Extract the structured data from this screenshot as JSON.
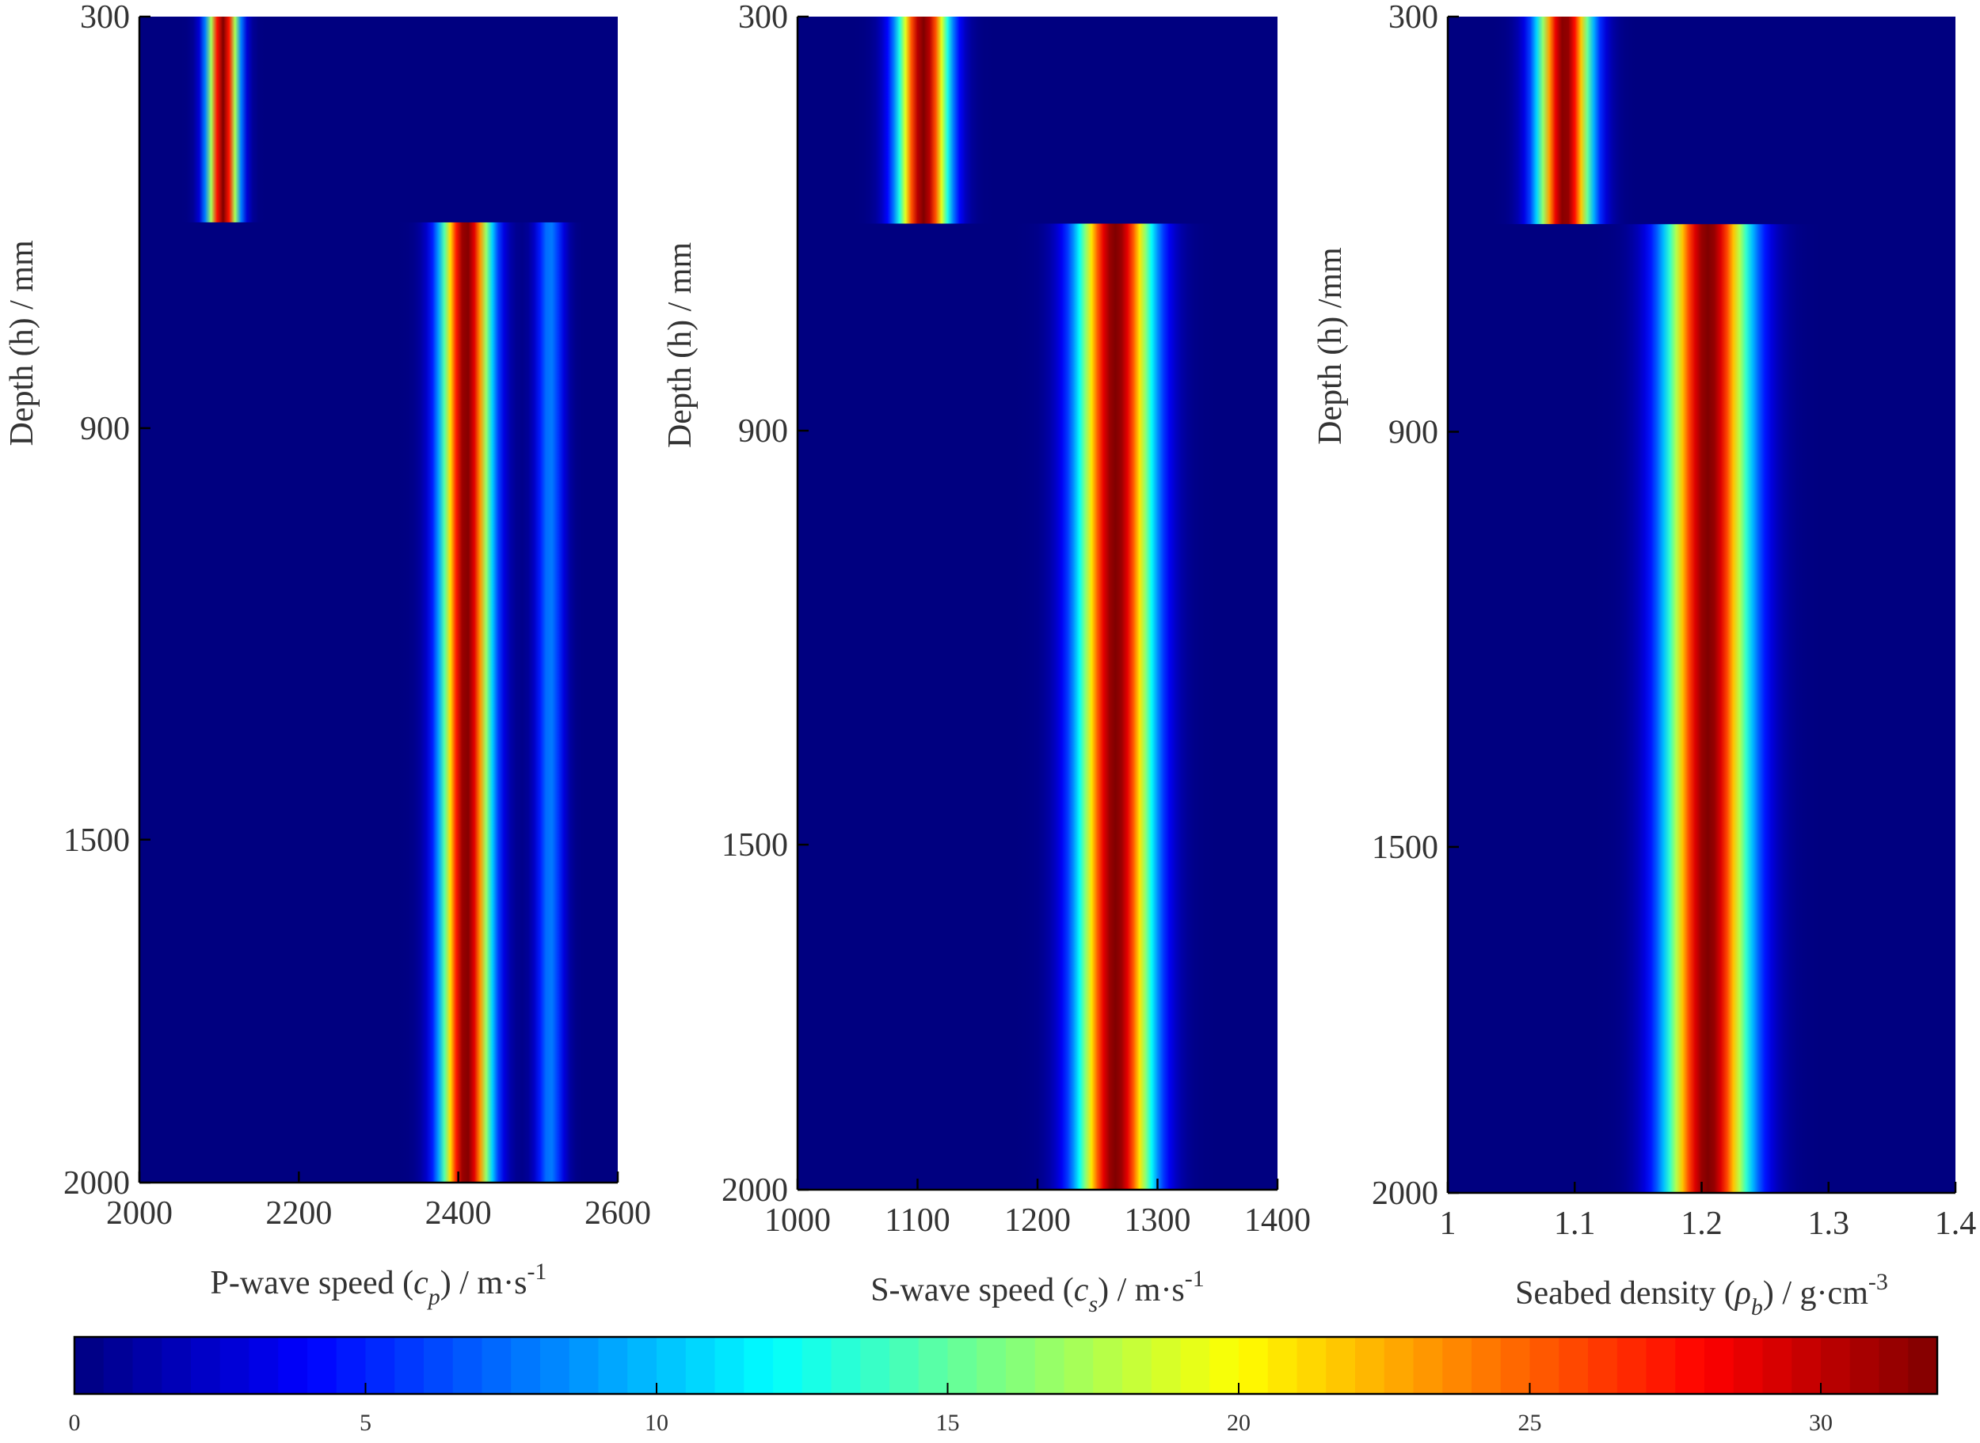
{
  "chart_data": [
    {
      "type": "heatmap",
      "id": "p-wave",
      "xlabel": "P-wave speed (c_p) / m·s^-1",
      "xlabel_parts": {
        "pre": "P-wave speed (",
        "sym": "c",
        "sub": "p",
        "post": ") / m·s",
        "sup": "-1"
      },
      "ylabel": "Depth (h) / mm",
      "xlim": [
        2000,
        2600
      ],
      "ylim": [
        300,
        2000
      ],
      "x_ticks": [
        2000,
        2200,
        2400,
        2600
      ],
      "y_ticks": [
        300,
        900,
        1500,
        2000
      ],
      "layers": [
        {
          "depth_range": [
            300,
            600
          ],
          "center": 2105,
          "width": 40
        },
        {
          "depth_range": [
            600,
            2000
          ],
          "center": 2410,
          "width": 65,
          "secondary": {
            "center": 2515,
            "width": 35,
            "peak": 8
          }
        }
      ]
    },
    {
      "type": "heatmap",
      "id": "s-wave",
      "xlabel": "S-wave speed (c_s) / m·s^-1",
      "xlabel_parts": {
        "pre": "S-wave speed (",
        "sym": "c",
        "sub": "s",
        "post": ") / m·s",
        "sup": "-1"
      },
      "ylabel": "Depth (h) / mm",
      "xlim": [
        1000,
        1400
      ],
      "ylim": [
        300,
        2000
      ],
      "x_ticks": [
        1000,
        1100,
        1200,
        1300,
        1400
      ],
      "y_ticks": [
        300,
        900,
        1500,
        2000
      ],
      "layers": [
        {
          "depth_range": [
            300,
            600
          ],
          "center": 1105,
          "width": 44
        },
        {
          "depth_range": [
            600,
            2000
          ],
          "center": 1265,
          "width": 64
        }
      ]
    },
    {
      "type": "heatmap",
      "id": "density",
      "xlabel": "Seabed density (ρ_b) / g·cm^-3",
      "xlabel_parts": {
        "pre": "Seabed  density (",
        "sym": "ρ",
        "sub": "b",
        "post": ") / g·cm",
        "sup": "-3"
      },
      "ylabel": "Depth (h) /mm",
      "xlim": [
        1.0,
        1.4
      ],
      "ylim": [
        300,
        2000
      ],
      "x_ticks": [
        "1",
        "1.1",
        "1.2",
        "1.3",
        "1.4"
      ],
      "y_ticks": [
        300,
        900,
        1500,
        2000
      ],
      "layers": [
        {
          "depth_range": [
            300,
            600
          ],
          "center": 1.092,
          "width": 0.044
        },
        {
          "depth_range": [
            600,
            2000
          ],
          "center": 1.205,
          "width": 0.068
        }
      ]
    }
  ],
  "colorbar": {
    "colormap": "jet",
    "range": [
      0,
      32
    ],
    "ticks": [
      0,
      5,
      10,
      15,
      20,
      25,
      30
    ]
  }
}
